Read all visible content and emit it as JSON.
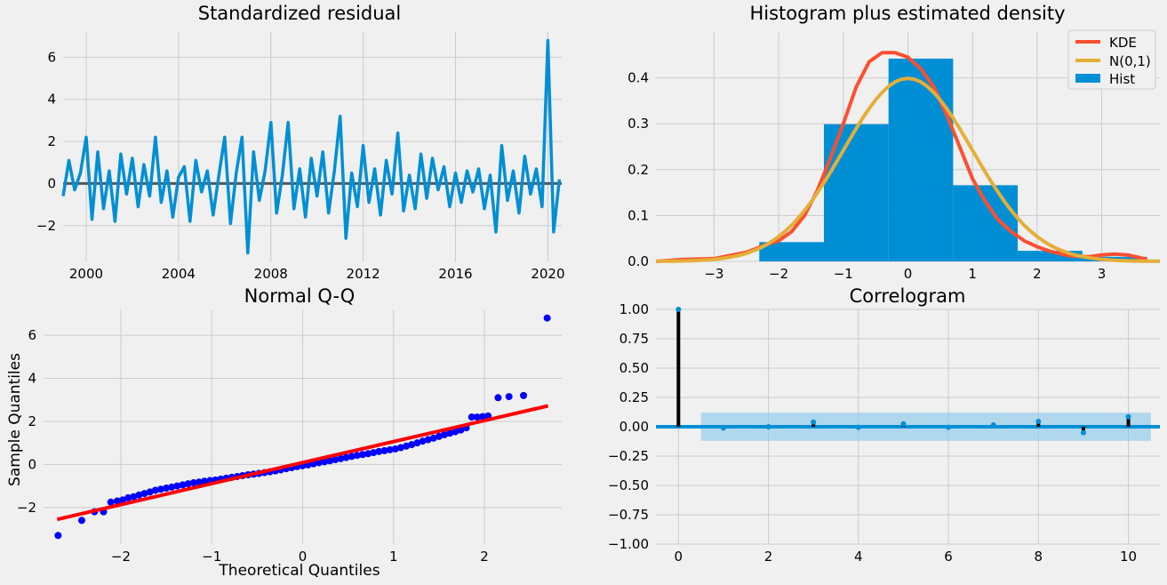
{
  "chart_data": [
    {
      "type": "line",
      "title": "Standardized residual",
      "xlabel": "",
      "ylabel": "",
      "xlim": [
        1999.0,
        2020.6
      ],
      "ylim": [
        -3.7,
        7.2
      ],
      "xticks": [
        2000,
        2004,
        2008,
        2012,
        2016,
        2020
      ],
      "xtick_labels": [
        "2000",
        "2004",
        "2008",
        "2012",
        "2016",
        "2020"
      ],
      "yticks": [
        -2,
        0,
        2,
        4,
        6
      ],
      "ytick_labels": [
        "−2",
        "0",
        "2",
        "4",
        "6"
      ],
      "zero_line": 0,
      "grid": true,
      "colors": {
        "series": "#008fd5",
        "zero": "#555555"
      },
      "series": [
        {
          "x": [
            1999.0,
            1999.25,
            1999.5,
            1999.75,
            2000.0,
            2000.25,
            2000.5,
            2000.75,
            2001.0,
            2001.25,
            2001.5,
            2001.75,
            2002.0,
            2002.25,
            2002.5,
            2002.75,
            2003.0,
            2003.25,
            2003.5,
            2003.75,
            2004.0,
            2004.25,
            2004.5,
            2004.75,
            2005.0,
            2005.25,
            2005.5,
            2005.75,
            2006.0,
            2006.25,
            2006.5,
            2006.75,
            2007.0,
            2007.25,
            2007.5,
            2007.75,
            2008.0,
            2008.25,
            2008.5,
            2008.75,
            2009.0,
            2009.25,
            2009.5,
            2009.75,
            2010.0,
            2010.25,
            2010.5,
            2010.75,
            2011.0,
            2011.25,
            2011.5,
            2011.75,
            2012.0,
            2012.25,
            2012.5,
            2012.75,
            2013.0,
            2013.25,
            2013.5,
            2013.75,
            2014.0,
            2014.25,
            2014.5,
            2014.75,
            2015.0,
            2015.25,
            2015.5,
            2015.75,
            2016.0,
            2016.25,
            2016.5,
            2016.75,
            2017.0,
            2017.25,
            2017.5,
            2017.75,
            2018.0,
            2018.25,
            2018.5,
            2018.75,
            2019.0,
            2019.25,
            2019.5,
            2019.75,
            2020.0,
            2020.25,
            2020.5
          ],
          "y": [
            -0.6,
            1.1,
            -0.3,
            0.5,
            2.2,
            -1.7,
            1.5,
            -1.2,
            0.6,
            -1.8,
            1.4,
            -0.5,
            1.2,
            -1.1,
            0.9,
            -0.6,
            2.2,
            -0.9,
            0.6,
            -1.6,
            0.3,
            0.8,
            -1.8,
            1.1,
            -0.4,
            0.6,
            -1.5,
            0.4,
            2.2,
            -1.9,
            0.5,
            2.2,
            -3.3,
            1.5,
            -0.8,
            0.6,
            2.9,
            -1.4,
            0.4,
            2.9,
            -1.2,
            0.7,
            -1.6,
            1.2,
            -0.6,
            1.5,
            -1.4,
            0.6,
            3.2,
            -2.6,
            0.5,
            -1.1,
            1.8,
            -0.9,
            0.7,
            -1.5,
            1.1,
            -0.5,
            2.4,
            -1.3,
            0.4,
            -1.2,
            1.4,
            -0.7,
            1.2,
            -0.3,
            0.8,
            -1.1,
            0.5,
            -0.9,
            0.6,
            -0.4,
            0.7,
            -1.2,
            0.4,
            -2.3,
            1.8,
            -0.8,
            0.6,
            -1.4,
            1.3,
            -0.5,
            0.7,
            -1.1,
            6.8,
            -2.3,
            0.2
          ]
        }
      ]
    },
    {
      "type": "bar",
      "title": "Histogram plus estimated density",
      "xlabel": "",
      "ylabel": "",
      "xlim": [
        -3.9,
        3.9
      ],
      "ylim": [
        0,
        0.5
      ],
      "xticks": [
        -3,
        -2,
        -1,
        0,
        1,
        2,
        3
      ],
      "xtick_labels": [
        "−3",
        "−2",
        "−1",
        "0",
        "1",
        "2",
        "3"
      ],
      "yticks": [
        0.0,
        0.1,
        0.2,
        0.3,
        0.4
      ],
      "ytick_labels": [
        "0.0",
        "0.1",
        "0.2",
        "0.3",
        "0.4"
      ],
      "grid": true,
      "legend_placement": "top-right",
      "legend": [
        "KDE",
        "N(0,1)",
        "Hist"
      ],
      "colors": {
        "hist": "#008fd5",
        "kde": "#fc4f30",
        "normal": "#e5ae38"
      },
      "hist_bins": [
        {
          "x0": -2.3,
          "x1": -1.3,
          "value": 0.042
        },
        {
          "x0": -1.3,
          "x1": -0.3,
          "value": 0.299
        },
        {
          "x0": -0.3,
          "x1": 0.7,
          "value": 0.442
        },
        {
          "x0": 0.7,
          "x1": 1.7,
          "value": 0.166
        },
        {
          "x0": 1.7,
          "x1": 2.7,
          "value": 0.023
        },
        {
          "x0": 2.7,
          "x1": 3.7,
          "value": 0.01
        }
      ],
      "kde": {
        "x": [
          -3.9,
          -3.5,
          -3.0,
          -2.5,
          -2.2,
          -2.0,
          -1.8,
          -1.6,
          -1.4,
          -1.2,
          -1.0,
          -0.8,
          -0.6,
          -0.4,
          -0.2,
          0.0,
          0.2,
          0.4,
          0.6,
          0.8,
          1.0,
          1.2,
          1.4,
          1.6,
          1.8,
          2.0,
          2.2,
          2.5,
          2.8,
          3.0,
          3.2,
          3.4,
          3.6,
          3.7
        ],
        "y": [
          0.0,
          0.004,
          0.006,
          0.02,
          0.036,
          0.045,
          0.065,
          0.1,
          0.155,
          0.225,
          0.3,
          0.38,
          0.435,
          0.455,
          0.455,
          0.445,
          0.42,
          0.38,
          0.32,
          0.25,
          0.18,
          0.13,
          0.09,
          0.065,
          0.045,
          0.032,
          0.022,
          0.012,
          0.01,
          0.014,
          0.016,
          0.014,
          0.008,
          0.004
        ]
      },
      "normal": {
        "mean": 0,
        "sd": 1
      }
    },
    {
      "type": "scatter",
      "title": "Normal Q-Q",
      "xlabel": "Theoretical Quantiles",
      "ylabel": "Sample Quantiles",
      "xlim": [
        -2.85,
        2.85
      ],
      "ylim": [
        -3.7,
        7.2
      ],
      "xticks": [
        -2,
        -1,
        0,
        1,
        2
      ],
      "xtick_labels": [
        "−2",
        "−1",
        "0",
        "1",
        "2"
      ],
      "yticks": [
        -2,
        0,
        2,
        4,
        6
      ],
      "ytick_labels": [
        "−2",
        "0",
        "2",
        "4",
        "6"
      ],
      "grid": true,
      "colors": {
        "points": "#0000ff",
        "line": "#ff0000"
      },
      "reference_line": {
        "x": [
          -2.7,
          2.7
        ],
        "y": [
          -2.55,
          2.72
        ]
      },
      "points": {
        "x": [
          -2.69,
          -2.43,
          -2.29,
          -2.19,
          -2.11,
          -2.04,
          -1.98,
          -1.92,
          -1.86,
          -1.8,
          -1.74,
          -1.68,
          -1.62,
          -1.56,
          -1.5,
          -1.44,
          -1.38,
          -1.32,
          -1.26,
          -1.2,
          -1.14,
          -1.08,
          -1.02,
          -0.96,
          -0.9,
          -0.84,
          -0.78,
          -0.72,
          -0.66,
          -0.6,
          -0.54,
          -0.48,
          -0.42,
          -0.36,
          -0.3,
          -0.24,
          -0.18,
          -0.12,
          -0.06,
          0.0,
          0.06,
          0.12,
          0.18,
          0.24,
          0.3,
          0.36,
          0.42,
          0.48,
          0.54,
          0.6,
          0.66,
          0.72,
          0.78,
          0.84,
          0.9,
          0.96,
          1.02,
          1.08,
          1.14,
          1.2,
          1.26,
          1.32,
          1.38,
          1.44,
          1.5,
          1.56,
          1.62,
          1.68,
          1.74,
          1.8,
          1.86,
          1.92,
          1.98,
          2.04,
          2.15,
          2.27,
          2.43,
          2.69
        ],
        "y": [
          -3.3,
          -2.6,
          -2.2,
          -2.2,
          -1.75,
          -1.7,
          -1.65,
          -1.55,
          -1.5,
          -1.42,
          -1.35,
          -1.28,
          -1.2,
          -1.15,
          -1.1,
          -1.05,
          -1.0,
          -0.95,
          -0.9,
          -0.85,
          -0.82,
          -0.78,
          -0.75,
          -0.72,
          -0.68,
          -0.64,
          -0.6,
          -0.56,
          -0.52,
          -0.48,
          -0.45,
          -0.42,
          -0.38,
          -0.34,
          -0.3,
          -0.25,
          -0.2,
          -0.15,
          -0.1,
          -0.06,
          -0.02,
          0.03,
          0.08,
          0.12,
          0.17,
          0.22,
          0.27,
          0.32,
          0.37,
          0.42,
          0.46,
          0.5,
          0.55,
          0.6,
          0.64,
          0.68,
          0.72,
          0.78,
          0.85,
          0.92,
          1.0,
          1.08,
          1.15,
          1.22,
          1.3,
          1.38,
          1.45,
          1.52,
          1.6,
          1.7,
          2.2,
          2.2,
          2.22,
          2.25,
          3.1,
          3.15,
          3.2,
          6.8
        ]
      }
    },
    {
      "type": "bar",
      "title": "Correlogram",
      "xlabel": "",
      "ylabel": "",
      "xlim": [
        -0.5,
        10.7
      ],
      "ylim": [
        -1.0,
        1.0
      ],
      "xticks": [
        0,
        2,
        4,
        6,
        8,
        10
      ],
      "xtick_labels": [
        "0",
        "2",
        "4",
        "6",
        "8",
        "10"
      ],
      "yticks": [
        -1.0,
        -0.75,
        -0.5,
        -0.25,
        0.0,
        0.25,
        0.5,
        0.75,
        1.0
      ],
      "ytick_labels": [
        "−1.00",
        "−0.75",
        "−0.50",
        "−0.25",
        "0.00",
        "0.25",
        "0.50",
        "0.75",
        "1.00"
      ],
      "grid": true,
      "colors": {
        "stems": "#000000",
        "markers": "#008fd5",
        "band": "#8ec9ea",
        "zero": "#008fd5"
      },
      "confidence_band": {
        "x0": 0.5,
        "x1": 10.5,
        "lower": -0.12,
        "upper": 0.12
      },
      "lags": [
        0,
        1,
        2,
        3,
        4,
        5,
        6,
        7,
        8,
        9,
        10
      ],
      "values": [
        1.0,
        -0.01,
        0.0,
        0.04,
        -0.005,
        0.025,
        -0.005,
        0.015,
        0.045,
        -0.05,
        0.085
      ]
    }
  ]
}
